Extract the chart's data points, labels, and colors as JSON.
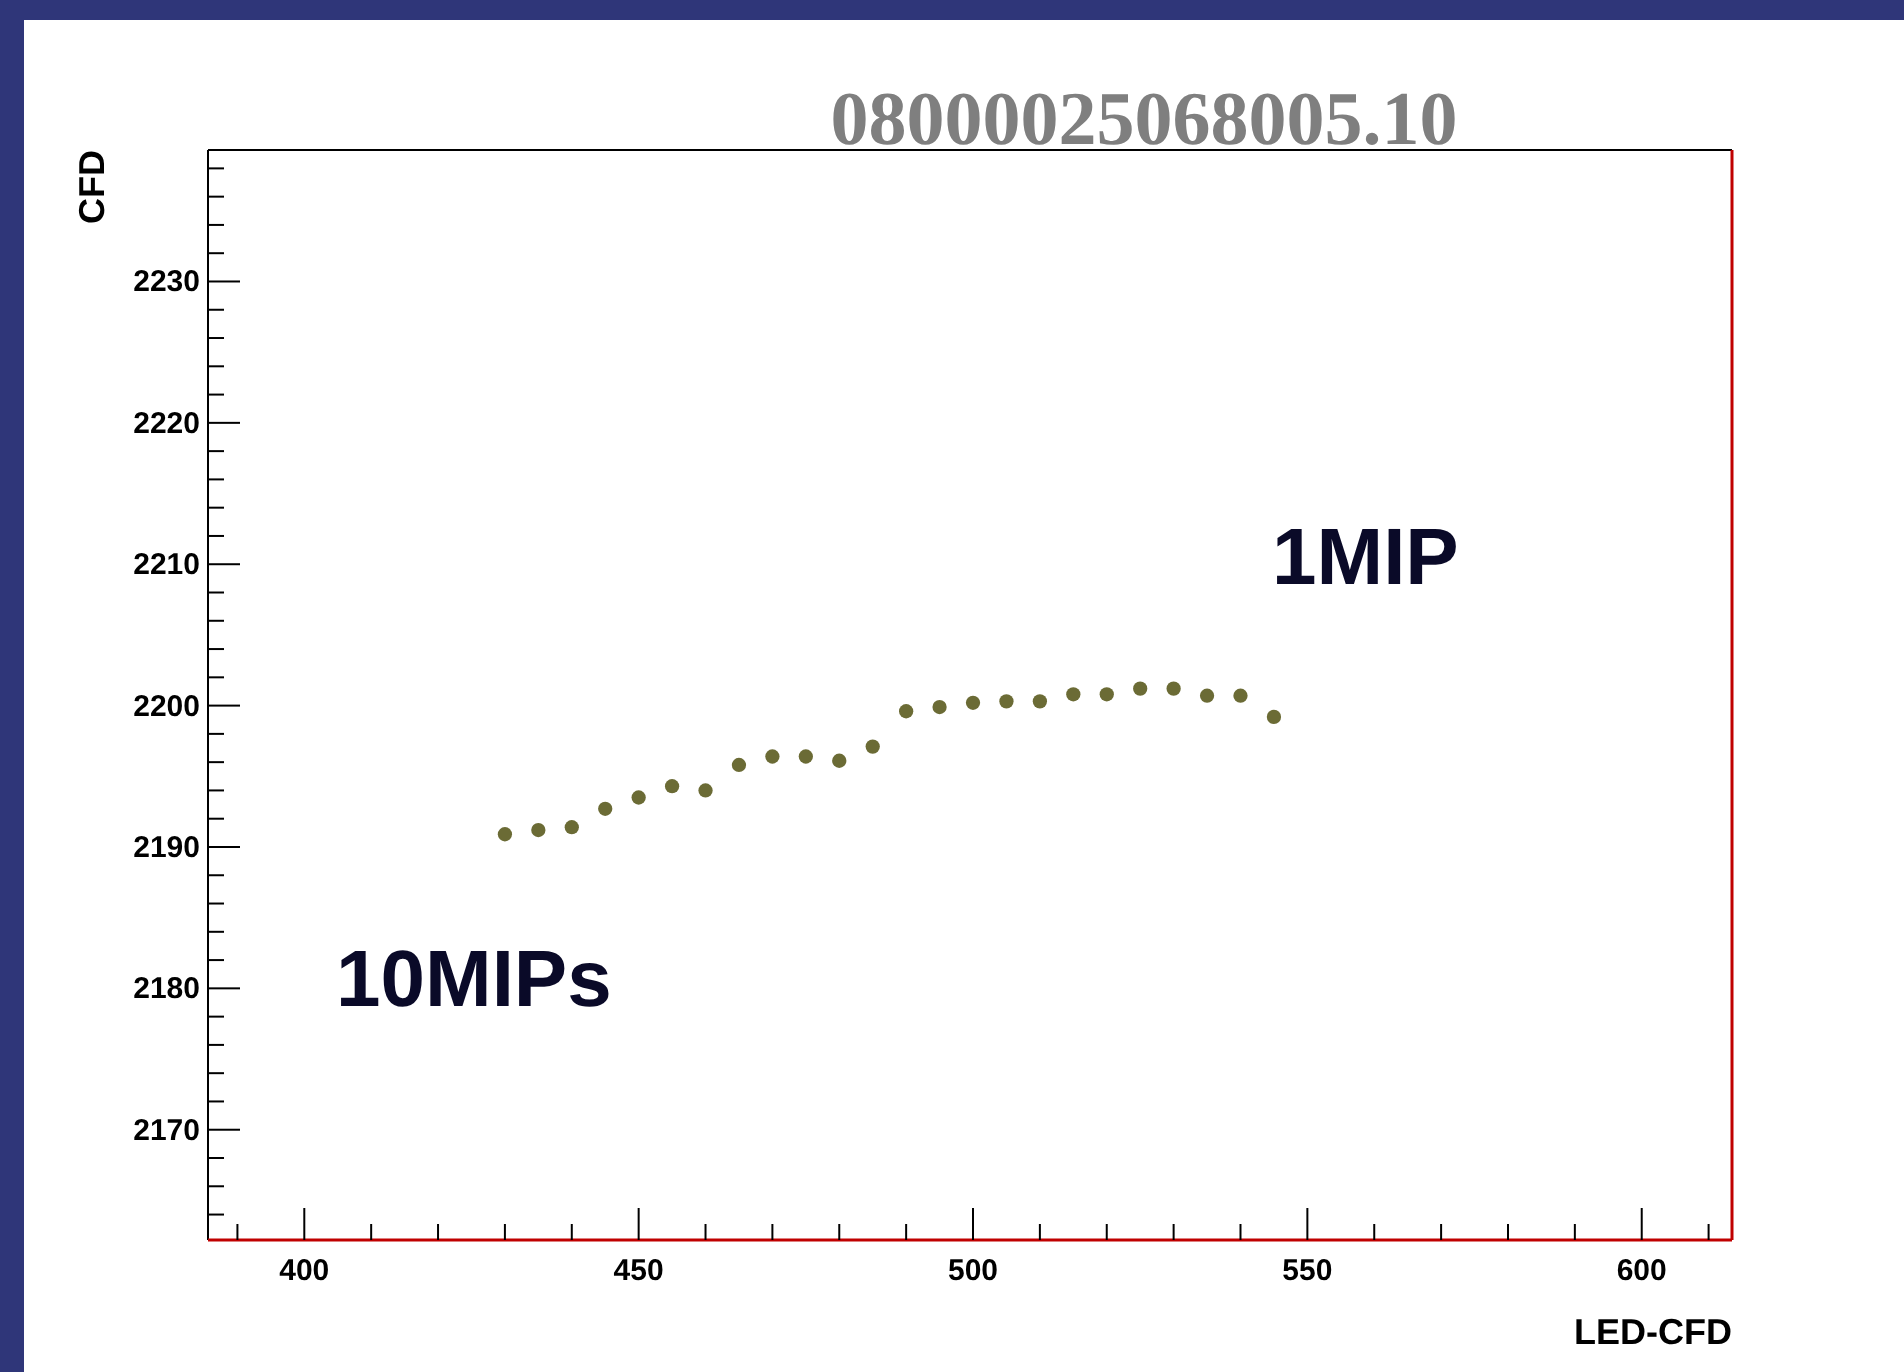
{
  "chart_data": {
    "type": "scatter",
    "title": "08000025068005.10",
    "xlabel": "LED-CFD",
    "ylabel": "CFD",
    "x": [
      430,
      435,
      440,
      445,
      450,
      455,
      460,
      465,
      470,
      475,
      480,
      485,
      490,
      495,
      500,
      505,
      510,
      515,
      520,
      525,
      530,
      535,
      540,
      545
    ],
    "series": [
      {
        "color": "#6b6b35",
        "values": [
          2190.9,
          2191.2,
          2191.4,
          2192.7,
          2193.5,
          2194.3,
          2194.0,
          2195.8,
          2196.4,
          2196.4,
          2196.1,
          2197.1,
          2199.6,
          2199.9,
          2200.2,
          2200.3,
          2200.3,
          2200.8,
          2200.8,
          2201.2,
          2201.2,
          2200.7,
          2200.7,
          2199.2
        ]
      }
    ],
    "marker": "circle",
    "xlim": [
      385.6,
      613.5
    ],
    "xticks": [
      {
        "value": 390,
        "label": null
      },
      400,
      {
        "value": 410,
        "label": null
      },
      {
        "value": 420,
        "label": null
      },
      {
        "value": 430,
        "label": null
      },
      {
        "value": 440,
        "label": null
      },
      450,
      {
        "value": 460,
        "label": null
      },
      {
        "value": 470,
        "label": null
      },
      {
        "value": 480,
        "label": null
      },
      {
        "value": 490,
        "label": null
      },
      500,
      {
        "value": 510,
        "label": null
      },
      {
        "value": 520,
        "label": null
      },
      {
        "value": 530,
        "label": null
      },
      {
        "value": 540,
        "label": null
      },
      550,
      {
        "value": 560,
        "label": null
      },
      {
        "value": 570,
        "label": null
      },
      {
        "value": 580,
        "label": null
      },
      {
        "value": 590,
        "label": null
      },
      600,
      {
        "value": 610,
        "label": null
      }
    ],
    "ylim": [
      2162.2,
      2239.3
    ],
    "yticks": [
      {
        "value": 2164,
        "label": null
      },
      {
        "value": 2166,
        "label": null
      },
      {
        "value": 2168,
        "label": null
      },
      2170,
      {
        "value": 2172,
        "label": null
      },
      {
        "value": 2174,
        "label": null
      },
      {
        "value": 2176,
        "label": null
      },
      {
        "value": 2178,
        "label": null
      },
      2180,
      {
        "value": 2182,
        "label": null
      },
      {
        "value": 2184,
        "label": null
      },
      {
        "value": 2186,
        "label": null
      },
      {
        "value": 2188,
        "label": null
      },
      2190,
      {
        "value": 2192,
        "label": null
      },
      {
        "value": 2194,
        "label": null
      },
      {
        "value": 2196,
        "label": null
      },
      {
        "value": 2198,
        "label": null
      },
      2200,
      {
        "value": 2202,
        "label": null
      },
      {
        "value": 2204,
        "label": null
      },
      {
        "value": 2206,
        "label": null
      },
      {
        "value": 2208,
        "label": null
      },
      2210,
      {
        "value": 2212,
        "label": null
      },
      {
        "value": 2214,
        "label": null
      },
      {
        "value": 2216,
        "label": null
      },
      {
        "value": 2218,
        "label": null
      },
      2220,
      {
        "value": 2222,
        "label": null
      },
      {
        "value": 2224,
        "label": null
      },
      {
        "value": 2226,
        "label": null
      },
      {
        "value": 2228,
        "label": null
      },
      2230,
      {
        "value": 2232,
        "label": null
      },
      {
        "value": 2234,
        "label": null
      },
      {
        "value": 2236,
        "label": null
      },
      {
        "value": 2238,
        "label": null
      }
    ],
    "grid": false,
    "annotations": [
      "10MIPs",
      "1MIP"
    ]
  }
}
